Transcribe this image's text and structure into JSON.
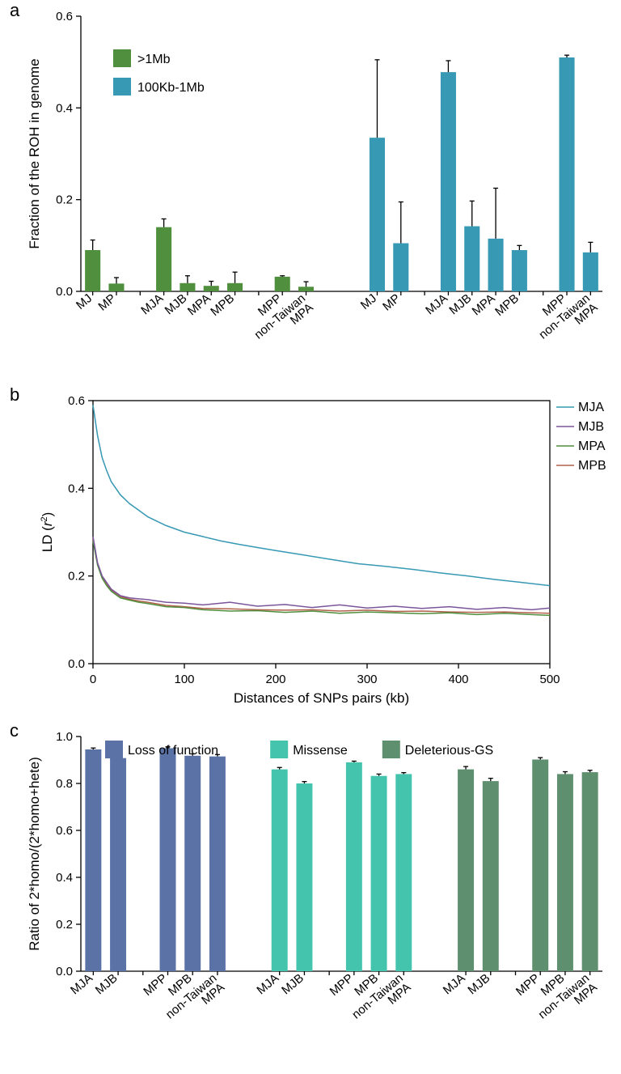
{
  "colors": {
    "green_bar": "#4f8f3d",
    "teal_bar": "#3799b3",
    "line_MJA": "#3799b3",
    "line_MJB": "#7b559c",
    "line_MPA": "#4f8f3d",
    "line_MPB": "#b1614c",
    "barc_lof": "#5a72a6",
    "barc_mis": "#44c4ac",
    "barc_del": "#5e8f6f",
    "black": "#000000",
    "bg": "#ffffff"
  },
  "fonts": {
    "panel_label_size": 22,
    "axis_label_size": 17,
    "tick_size": 15,
    "legend_size": 16
  },
  "panel_a": {
    "letter": "a",
    "ylabel": "Fraction of the ROH in genome",
    "ylim": [
      0.0,
      0.6
    ],
    "ytick_step": 0.2,
    "yticks": [
      "0.0",
      "0.2",
      "0.4",
      "0.6"
    ],
    "bar_width": 0.65,
    "error_capwidth": 6,
    "legend": [
      {
        "label": ">1Mb",
        "color": "#4f8f3d"
      },
      {
        "label": "100Kb-1Mb",
        "color": "#3799b3"
      }
    ],
    "groups": [
      {
        "color": "#4f8f3d",
        "bars": [
          {
            "label": "MJ",
            "value": 0.09,
            "err": 0.022
          },
          {
            "label": "MP",
            "value": 0.017,
            "err": 0.013
          },
          {
            "label": "",
            "value": null,
            "err": null,
            "blank": true
          },
          {
            "label": "MJA",
            "value": 0.14,
            "err": 0.018
          },
          {
            "label": "MJB",
            "value": 0.018,
            "err": 0.016
          },
          {
            "label": "MPA",
            "value": 0.012,
            "err": 0.01
          },
          {
            "label": "MPB",
            "value": 0.018,
            "err": 0.024
          },
          {
            "label": "",
            "value": null,
            "err": null,
            "blank": true
          },
          {
            "label": "MPP",
            "value": 0.032,
            "err": 0.002
          },
          {
            "label": "non-Taiwan\nMPA",
            "value": 0.01,
            "err": 0.011
          }
        ]
      },
      {
        "color": "#3799b3",
        "bars": [
          {
            "label": "MJ",
            "value": 0.335,
            "err": 0.17
          },
          {
            "label": "MP",
            "value": 0.105,
            "err": 0.09
          },
          {
            "label": "",
            "value": null,
            "err": null,
            "blank": true
          },
          {
            "label": "MJA",
            "value": 0.478,
            "err": 0.025
          },
          {
            "label": "MJB",
            "value": 0.142,
            "err": 0.055
          },
          {
            "label": "MPA",
            "value": 0.115,
            "err": 0.11
          },
          {
            "label": "MPB",
            "value": 0.09,
            "err": 0.01
          },
          {
            "label": "",
            "value": null,
            "err": null,
            "blank": true
          },
          {
            "label": "MPP",
            "value": 0.51,
            "err": 0.005
          },
          {
            "label": "non-Taiwan\nMPA",
            "value": 0.085,
            "err": 0.022
          }
        ]
      }
    ]
  },
  "panel_b": {
    "letter": "b",
    "xlabel": "Distances of SNPs pairs (kb)",
    "ylabel": "LD (r²)",
    "ylabel_html": "LD (<tspan font-style='italic'>r</tspan><tspan baseline-shift='super' font-size='11'>2</tspan>)",
    "xlim": [
      0,
      500
    ],
    "ylim": [
      0.0,
      0.6
    ],
    "xtick_step": 100,
    "ytick_step": 0.2,
    "xticks": [
      "0",
      "100",
      "200",
      "300",
      "400",
      "500"
    ],
    "yticks": [
      "0.0",
      "0.2",
      "0.4",
      "0.6"
    ],
    "legend": [
      {
        "label": "MJA",
        "color": "#3799b3"
      },
      {
        "label": "MJB",
        "color": "#7b559c"
      },
      {
        "label": "MPA",
        "color": "#4f8f3d"
      },
      {
        "label": "MPB",
        "color": "#b1614c"
      }
    ],
    "series": {
      "MJA": {
        "color": "#3799b3",
        "x": [
          0,
          5,
          10,
          15,
          20,
          30,
          40,
          50,
          60,
          80,
          100,
          120,
          140,
          160,
          180,
          200,
          230,
          260,
          290,
          320,
          350,
          380,
          410,
          440,
          470,
          500
        ],
        "y": [
          0.59,
          0.52,
          0.47,
          0.44,
          0.415,
          0.385,
          0.365,
          0.35,
          0.335,
          0.315,
          0.3,
          0.29,
          0.28,
          0.272,
          0.265,
          0.258,
          0.248,
          0.238,
          0.228,
          0.222,
          0.215,
          0.207,
          0.2,
          0.192,
          0.185,
          0.178
        ]
      },
      "MJB": {
        "color": "#7b559c",
        "x": [
          0,
          5,
          10,
          15,
          20,
          30,
          40,
          50,
          60,
          80,
          100,
          120,
          150,
          180,
          210,
          240,
          270,
          300,
          330,
          360,
          390,
          420,
          450,
          480,
          500
        ],
        "y": [
          0.29,
          0.23,
          0.2,
          0.185,
          0.17,
          0.155,
          0.15,
          0.148,
          0.146,
          0.14,
          0.138,
          0.134,
          0.14,
          0.131,
          0.135,
          0.128,
          0.134,
          0.127,
          0.131,
          0.126,
          0.13,
          0.124,
          0.128,
          0.123,
          0.127
        ]
      },
      "MPA": {
        "color": "#4f8f3d",
        "x": [
          0,
          5,
          10,
          15,
          20,
          30,
          40,
          50,
          60,
          80,
          100,
          120,
          150,
          180,
          210,
          240,
          270,
          300,
          330,
          360,
          390,
          420,
          450,
          480,
          500
        ],
        "y": [
          0.28,
          0.225,
          0.195,
          0.178,
          0.165,
          0.15,
          0.145,
          0.14,
          0.137,
          0.13,
          0.128,
          0.123,
          0.12,
          0.121,
          0.117,
          0.12,
          0.115,
          0.118,
          0.116,
          0.114,
          0.116,
          0.112,
          0.115,
          0.112,
          0.11
        ]
      },
      "MPB": {
        "color": "#b1614c",
        "x": [
          0,
          5,
          10,
          15,
          20,
          30,
          40,
          50,
          60,
          80,
          100,
          120,
          150,
          180,
          210,
          240,
          270,
          300,
          330,
          360,
          390,
          420,
          450,
          480,
          500
        ],
        "y": [
          0.285,
          0.228,
          0.198,
          0.18,
          0.168,
          0.153,
          0.147,
          0.143,
          0.14,
          0.133,
          0.13,
          0.126,
          0.125,
          0.123,
          0.122,
          0.123,
          0.12,
          0.122,
          0.119,
          0.12,
          0.118,
          0.117,
          0.118,
          0.116,
          0.115
        ]
      }
    },
    "line_width": 1.5
  },
  "panel_c": {
    "letter": "c",
    "ylabel": "Ratio of 2*homo/(2*homo+hete)",
    "ylim": [
      0.0,
      1.0
    ],
    "ytick_step": 0.2,
    "yticks": [
      "0.0",
      "0.2",
      "0.4",
      "0.6",
      "0.8",
      "1.0"
    ],
    "bar_width": 0.65,
    "legend": [
      {
        "label": "Loss of function",
        "color": "#5a72a6"
      },
      {
        "label": "Missense",
        "color": "#44c4ac"
      },
      {
        "label": "Deleterious-GS",
        "color": "#5e8f6f"
      }
    ],
    "subgroups": [
      [
        {
          "label": "MJA",
          "value": 0.945,
          "err": 0.006
        },
        {
          "label": "MJB",
          "value": 0.908,
          "err": 0.01
        },
        {
          "blank": true
        },
        {
          "label": "MPP",
          "value": 0.95,
          "err": 0.006
        },
        {
          "label": "MPB",
          "value": 0.918,
          "err": 0.008
        },
        {
          "label": "non-Taiwan\nMPA",
          "value": 0.915,
          "err": 0.008
        }
      ],
      [
        {
          "label": "MJA",
          "value": 0.86,
          "err": 0.008
        },
        {
          "label": "MJB",
          "value": 0.8,
          "err": 0.008
        },
        {
          "blank": true
        },
        {
          "label": "MPP",
          "value": 0.89,
          "err": 0.005
        },
        {
          "label": "MPB",
          "value": 0.832,
          "err": 0.008
        },
        {
          "label": "non-Taiwan\nMPA",
          "value": 0.84,
          "err": 0.006
        }
      ],
      [
        {
          "label": "MJA",
          "value": 0.86,
          "err": 0.012
        },
        {
          "label": "MJB",
          "value": 0.81,
          "err": 0.012
        },
        {
          "blank": true
        },
        {
          "label": "MPP",
          "value": 0.902,
          "err": 0.008
        },
        {
          "label": "MPB",
          "value": 0.84,
          "err": 0.01
        },
        {
          "label": "non-Taiwan\nMPA",
          "value": 0.848,
          "err": 0.008
        }
      ]
    ]
  }
}
